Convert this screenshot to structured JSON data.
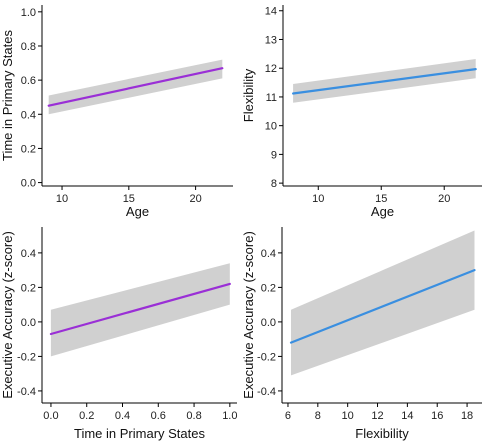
{
  "colors": {
    "purple": "#9a2fd6",
    "blue": "#3a8fe0",
    "band": "#d0d0d0"
  },
  "chart_data": [
    {
      "id": "age-vs-time-in-primary-states",
      "type": "line",
      "xlabel": "Age",
      "ylabel": "Time in Primary States",
      "xlim": [
        8.5,
        22.8
      ],
      "ylim": [
        -0.02,
        1.04
      ],
      "x_ticks": [
        10,
        15,
        20
      ],
      "y_ticks": [
        0.0,
        0.2,
        0.4,
        0.6,
        0.8,
        1.0
      ],
      "x_tick_labels": [
        "10",
        "15",
        "20"
      ],
      "y_tick_labels": [
        "0.0",
        "0.2",
        "0.4",
        "0.6",
        "0.8",
        "1.0"
      ],
      "grid": false,
      "color_key": "purple",
      "series": [
        {
          "x": [
            9,
            22
          ],
          "y": [
            0.45,
            0.67
          ],
          "ci_lower": [
            0.4,
            0.61
          ],
          "ci_upper": [
            0.51,
            0.72
          ]
        }
      ]
    },
    {
      "id": "age-vs-flexibility",
      "type": "line",
      "xlabel": "Age",
      "ylabel": "Flexibility",
      "xlim": [
        7.2,
        23.0
      ],
      "ylim": [
        7.9,
        14.2
      ],
      "x_ticks": [
        10,
        15,
        20
      ],
      "y_ticks": [
        8,
        9,
        10,
        11,
        12,
        13,
        14
      ],
      "x_tick_labels": [
        "10",
        "15",
        "20"
      ],
      "y_tick_labels": [
        "8",
        "9",
        "10",
        "11",
        "12",
        "13",
        "14"
      ],
      "grid": false,
      "color_key": "blue",
      "series": [
        {
          "x": [
            8,
            22.5
          ],
          "y": [
            11.12,
            11.97
          ],
          "ci_lower": [
            10.8,
            11.65
          ],
          "ci_upper": [
            11.45,
            12.32
          ]
        }
      ]
    },
    {
      "id": "time-in-primary-states-vs-executive-accuracy",
      "type": "line",
      "xlabel": "Time in Primary States",
      "ylabel": "Executive Accuracy (z-score)",
      "xlim": [
        -0.05,
        1.04
      ],
      "ylim": [
        -0.47,
        0.55
      ],
      "x_ticks": [
        0.0,
        0.2,
        0.4,
        0.6,
        0.8,
        1.0
      ],
      "y_ticks": [
        -0.4,
        -0.2,
        0.0,
        0.2,
        0.4
      ],
      "x_tick_labels": [
        "0.0",
        "0.2",
        "0.4",
        "0.6",
        "0.8",
        "1.0"
      ],
      "y_tick_labels": [
        "-0.4",
        "-0.2",
        "0.0",
        "0.2",
        "0.4"
      ],
      "grid": false,
      "color_key": "purple",
      "series": [
        {
          "x": [
            0.0,
            1.0
          ],
          "y": [
            -0.07,
            0.22
          ],
          "ci_lower": [
            -0.2,
            0.1
          ],
          "ci_upper": [
            0.07,
            0.34
          ]
        }
      ]
    },
    {
      "id": "flexibility-vs-executive-accuracy",
      "type": "line",
      "xlabel": "Flexibility",
      "ylabel": "Executive Accuracy (z-score)",
      "xlim": [
        5.6,
        19.0
      ],
      "ylim": [
        -0.47,
        0.55
      ],
      "x_ticks": [
        6,
        8,
        10,
        12,
        14,
        16,
        18
      ],
      "y_ticks": [
        -0.4,
        -0.2,
        0.0,
        0.2,
        0.4
      ],
      "x_tick_labels": [
        "6",
        "8",
        "10",
        "12",
        "14",
        "16",
        "18"
      ],
      "y_tick_labels": [
        "-0.4",
        "-0.2",
        "0.0",
        "0.2",
        "0.4"
      ],
      "grid": false,
      "color_key": "blue",
      "series": [
        {
          "x": [
            6.2,
            18.5
          ],
          "y": [
            -0.12,
            0.3
          ],
          "ci_lower": [
            -0.31,
            0.07
          ],
          "ci_upper": [
            0.07,
            0.53
          ]
        }
      ]
    }
  ]
}
